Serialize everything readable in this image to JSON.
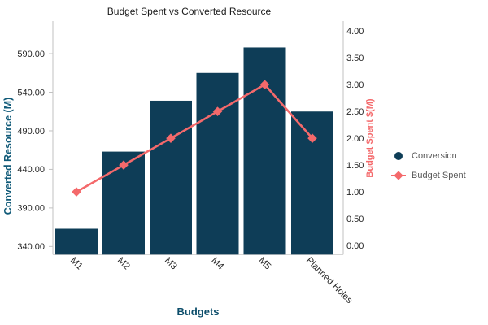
{
  "chart_data": {
    "type": "combo",
    "title": "Budget Spent vs Converted Resource",
    "categories": [
      "M1",
      "M2",
      "M3",
      "M4",
      "M5",
      "Planned Holes"
    ],
    "series": [
      {
        "name": "Conversion",
        "type": "bar",
        "axis": "left",
        "color": "#0E3D57",
        "values": [
          363,
          463,
          529,
          565,
          598,
          515
        ]
      },
      {
        "name": "Budget Spent",
        "type": "line",
        "axis": "right",
        "color": "#F4696B",
        "marker": "diamond",
        "values": [
          1.0,
          1.5,
          2.0,
          2.5,
          3.0,
          2.0
        ]
      }
    ],
    "left_axis": {
      "label": "Converted Resource (M)",
      "ticks": [
        "340.00",
        "390.00",
        "440.00",
        "490.00",
        "540.00",
        "590.00"
      ],
      "range": [
        329.5,
        632.2
      ]
    },
    "right_axis": {
      "label": "Budget Spent $(M)",
      "ticks": [
        "0.00",
        "0.50",
        "1.00",
        "1.50",
        "2.00",
        "2.50",
        "3.00",
        "3.50",
        "4.00"
      ],
      "range": [
        -0.17,
        4.185
      ]
    },
    "x_axis": {
      "label": "Budgets"
    },
    "legend": {
      "position": "right",
      "items": [
        {
          "label": "Conversion",
          "marker": "circle",
          "color": "#0E3D57"
        },
        {
          "label": "Budget Spent",
          "marker": "diamond-line",
          "color": "#F4696B"
        }
      ]
    },
    "grid": false
  },
  "colors": {
    "title": "#1a1a1a",
    "bar": "#0E3D57",
    "line": "#F4696B",
    "left_axis_title": "#105A78",
    "right_axis_title": "#F4696B",
    "x_axis_title": "#0D4E6B",
    "tick_label": "#262626",
    "category_label": "#2b2b2b",
    "legend_text": "#595959",
    "axis_line": "#d5d5d5",
    "tick_mark": "#c2c2c2"
  }
}
